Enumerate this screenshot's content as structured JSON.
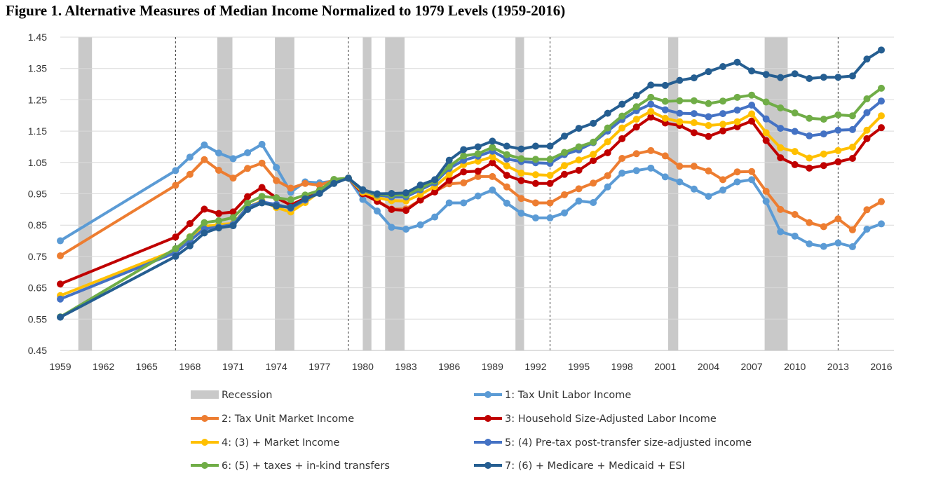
{
  "chart_data": {
    "type": "line",
    "title": "Figure 1. Alternative Measures of Median Income Normalized to 1979 Levels (1959-2016)",
    "xlabel": "",
    "ylabel": "",
    "xlim": [
      1959,
      2016
    ],
    "ylim": [
      0.45,
      1.45
    ],
    "yticks": [
      0.45,
      0.55,
      0.65,
      0.75,
      0.85,
      0.95,
      1.05,
      1.15,
      1.25,
      1.35,
      1.45
    ],
    "ytick_labels": [
      "0.45",
      "0.55",
      "0.65",
      "0.75",
      "0.85",
      "0.95",
      "1.05",
      "1.15",
      "1.25",
      "1.35",
      "1.45"
    ],
    "xticks": [
      "1959",
      "1962",
      "1965",
      "1968",
      "1971",
      "1974",
      "1977",
      "1980",
      "1983",
      "1986",
      "1989",
      "1992",
      "1995",
      "1998",
      "2001",
      "2004",
      "2007",
      "2010",
      "2013",
      "2016"
    ],
    "grid": "horizontal",
    "legend_position": "bottom",
    "recession_label": "Recession",
    "recessions": [
      [
        1960.25,
        1961.2
      ],
      [
        1969.9,
        1970.95
      ],
      [
        1973.9,
        1975.25
      ],
      [
        1980.0,
        1980.6
      ],
      [
        1981.55,
        1982.9
      ],
      [
        1990.6,
        1991.2
      ],
      [
        2001.2,
        2001.9
      ],
      [
        2007.9,
        2009.5
      ]
    ],
    "vertical_markers": [
      1967,
      1979,
      1993,
      2013
    ],
    "x": [
      1959,
      1967,
      1968,
      1969,
      1970,
      1971,
      1972,
      1973,
      1974,
      1975,
      1976,
      1977,
      1978,
      1979,
      1980,
      1981,
      1982,
      1983,
      1984,
      1985,
      1986,
      1987,
      1988,
      1989,
      1990,
      1991,
      1992,
      1993,
      1994,
      1995,
      1996,
      1997,
      1998,
      1999,
      2000,
      2001,
      2002,
      2003,
      2004,
      2005,
      2006,
      2007,
      2008,
      2009,
      2010,
      2011,
      2012,
      2013,
      2014,
      2015,
      2016
    ],
    "series": [
      {
        "name": "1: Tax Unit Labor Income",
        "color": "#5b9bd5",
        "values": [
          0.8,
          1.024,
          1.067,
          1.106,
          1.08,
          1.062,
          1.081,
          1.108,
          1.034,
          0.955,
          0.988,
          0.985,
          0.991,
          1.0,
          0.932,
          0.895,
          0.843,
          0.837,
          0.851,
          0.876,
          0.921,
          0.921,
          0.943,
          0.962,
          0.92,
          0.888,
          0.873,
          0.873,
          0.889,
          0.927,
          0.922,
          0.972,
          1.016,
          1.024,
          1.032,
          1.004,
          0.988,
          0.965,
          0.942,
          0.962,
          0.988,
          0.995,
          0.926,
          0.829,
          0.815,
          0.79,
          0.782,
          0.793,
          0.781,
          0.837,
          0.854
        ]
      },
      {
        "name": "2: Tax Unit Market Income",
        "color": "#ed7d31",
        "values": [
          0.752,
          0.977,
          1.012,
          1.059,
          1.025,
          1.0,
          1.031,
          1.048,
          0.992,
          0.968,
          0.983,
          0.977,
          0.994,
          1.0,
          0.951,
          0.928,
          0.901,
          0.902,
          0.93,
          0.957,
          0.982,
          0.985,
          1.005,
          1.005,
          0.972,
          0.935,
          0.921,
          0.921,
          0.947,
          0.966,
          0.984,
          1.008,
          1.063,
          1.078,
          1.088,
          1.071,
          1.038,
          1.038,
          1.023,
          0.995,
          1.02,
          1.021,
          0.958,
          0.9,
          0.884,
          0.858,
          0.845,
          0.87,
          0.835,
          0.899,
          0.925
        ]
      },
      {
        "name": "3: Household Size-Adjusted Labor Income",
        "color": "#c00000",
        "values": [
          0.662,
          0.812,
          0.855,
          0.901,
          0.887,
          0.892,
          0.941,
          0.97,
          0.937,
          0.914,
          0.936,
          0.961,
          0.993,
          1.0,
          0.95,
          0.926,
          0.9,
          0.897,
          0.93,
          0.956,
          0.993,
          1.02,
          1.022,
          1.049,
          1.009,
          0.992,
          0.983,
          0.983,
          1.012,
          1.025,
          1.056,
          1.081,
          1.126,
          1.163,
          1.195,
          1.176,
          1.168,
          1.145,
          1.133,
          1.151,
          1.164,
          1.182,
          1.12,
          1.065,
          1.043,
          1.032,
          1.04,
          1.052,
          1.063,
          1.126,
          1.161
        ]
      },
      {
        "name": "4: (3)  + Market Income",
        "color": "#ffc000",
        "values": [
          0.625,
          0.77,
          0.813,
          0.846,
          0.852,
          0.855,
          0.908,
          0.927,
          0.906,
          0.892,
          0.922,
          0.957,
          0.995,
          1.0,
          0.955,
          0.938,
          0.928,
          0.927,
          0.948,
          0.973,
          1.012,
          1.043,
          1.054,
          1.068,
          1.039,
          1.016,
          1.011,
          1.009,
          1.04,
          1.058,
          1.076,
          1.116,
          1.16,
          1.188,
          1.213,
          1.191,
          1.18,
          1.177,
          1.168,
          1.172,
          1.18,
          1.205,
          1.145,
          1.097,
          1.085,
          1.064,
          1.077,
          1.088,
          1.099,
          1.153,
          1.199
        ]
      },
      {
        "name": "5: (4) Pre-tax post-transfer size-adjusted income",
        "color": "#4472c4",
        "values": [
          0.614,
          0.762,
          0.8,
          0.838,
          0.844,
          0.852,
          0.908,
          0.924,
          0.916,
          0.904,
          0.93,
          0.955,
          0.99,
          1.0,
          0.96,
          0.946,
          0.94,
          0.94,
          0.963,
          0.985,
          1.031,
          1.057,
          1.07,
          1.086,
          1.061,
          1.053,
          1.049,
          1.047,
          1.075,
          1.09,
          1.113,
          1.15,
          1.187,
          1.215,
          1.236,
          1.218,
          1.207,
          1.206,
          1.196,
          1.206,
          1.217,
          1.233,
          1.189,
          1.159,
          1.149,
          1.135,
          1.141,
          1.153,
          1.155,
          1.209,
          1.246
        ]
      },
      {
        "name": "6: (5) + taxes + in-kind transfers",
        "color": "#70ad47",
        "values": [
          0.557,
          0.775,
          0.812,
          0.858,
          0.864,
          0.874,
          0.92,
          0.942,
          0.937,
          0.931,
          0.946,
          0.961,
          0.996,
          1.0,
          0.962,
          0.948,
          0.946,
          0.946,
          0.968,
          0.991,
          1.038,
          1.071,
          1.078,
          1.098,
          1.075,
          1.062,
          1.06,
          1.06,
          1.082,
          1.1,
          1.115,
          1.16,
          1.198,
          1.228,
          1.258,
          1.245,
          1.247,
          1.247,
          1.238,
          1.246,
          1.258,
          1.265,
          1.243,
          1.224,
          1.208,
          1.191,
          1.188,
          1.202,
          1.199,
          1.253,
          1.287
        ]
      },
      {
        "name": "7: (6) + Medicare + Medicaid + ESI",
        "color": "#255e91",
        "values": [
          0.556,
          0.75,
          0.784,
          0.825,
          0.841,
          0.848,
          0.9,
          0.921,
          0.911,
          0.907,
          0.934,
          0.951,
          0.983,
          1.0,
          0.963,
          0.95,
          0.951,
          0.953,
          0.978,
          0.995,
          1.057,
          1.091,
          1.1,
          1.118,
          1.102,
          1.093,
          1.102,
          1.102,
          1.134,
          1.159,
          1.175,
          1.207,
          1.236,
          1.264,
          1.297,
          1.296,
          1.312,
          1.32,
          1.34,
          1.356,
          1.37,
          1.342,
          1.331,
          1.321,
          1.333,
          1.318,
          1.322,
          1.322,
          1.326,
          1.38,
          1.409
        ]
      }
    ]
  }
}
